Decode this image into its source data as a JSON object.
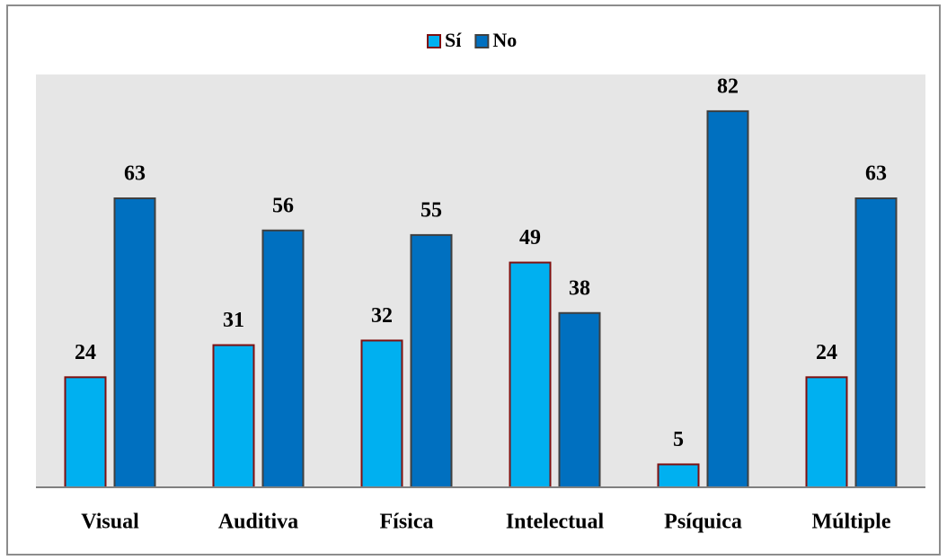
{
  "chart_data": {
    "type": "bar",
    "categories": [
      "Visual",
      "Auditiva",
      "Física",
      "Intelectual",
      "Psíquica",
      "Múltiple"
    ],
    "series": [
      {
        "name": "Sí",
        "color": "#00b0f0",
        "values": [
          24,
          31,
          32,
          49,
          5,
          24
        ]
      },
      {
        "name": "No",
        "color": "#0070c0",
        "values": [
          63,
          56,
          55,
          38,
          82,
          63
        ]
      }
    ],
    "ylim": [
      0,
      90
    ],
    "legend": "top"
  }
}
